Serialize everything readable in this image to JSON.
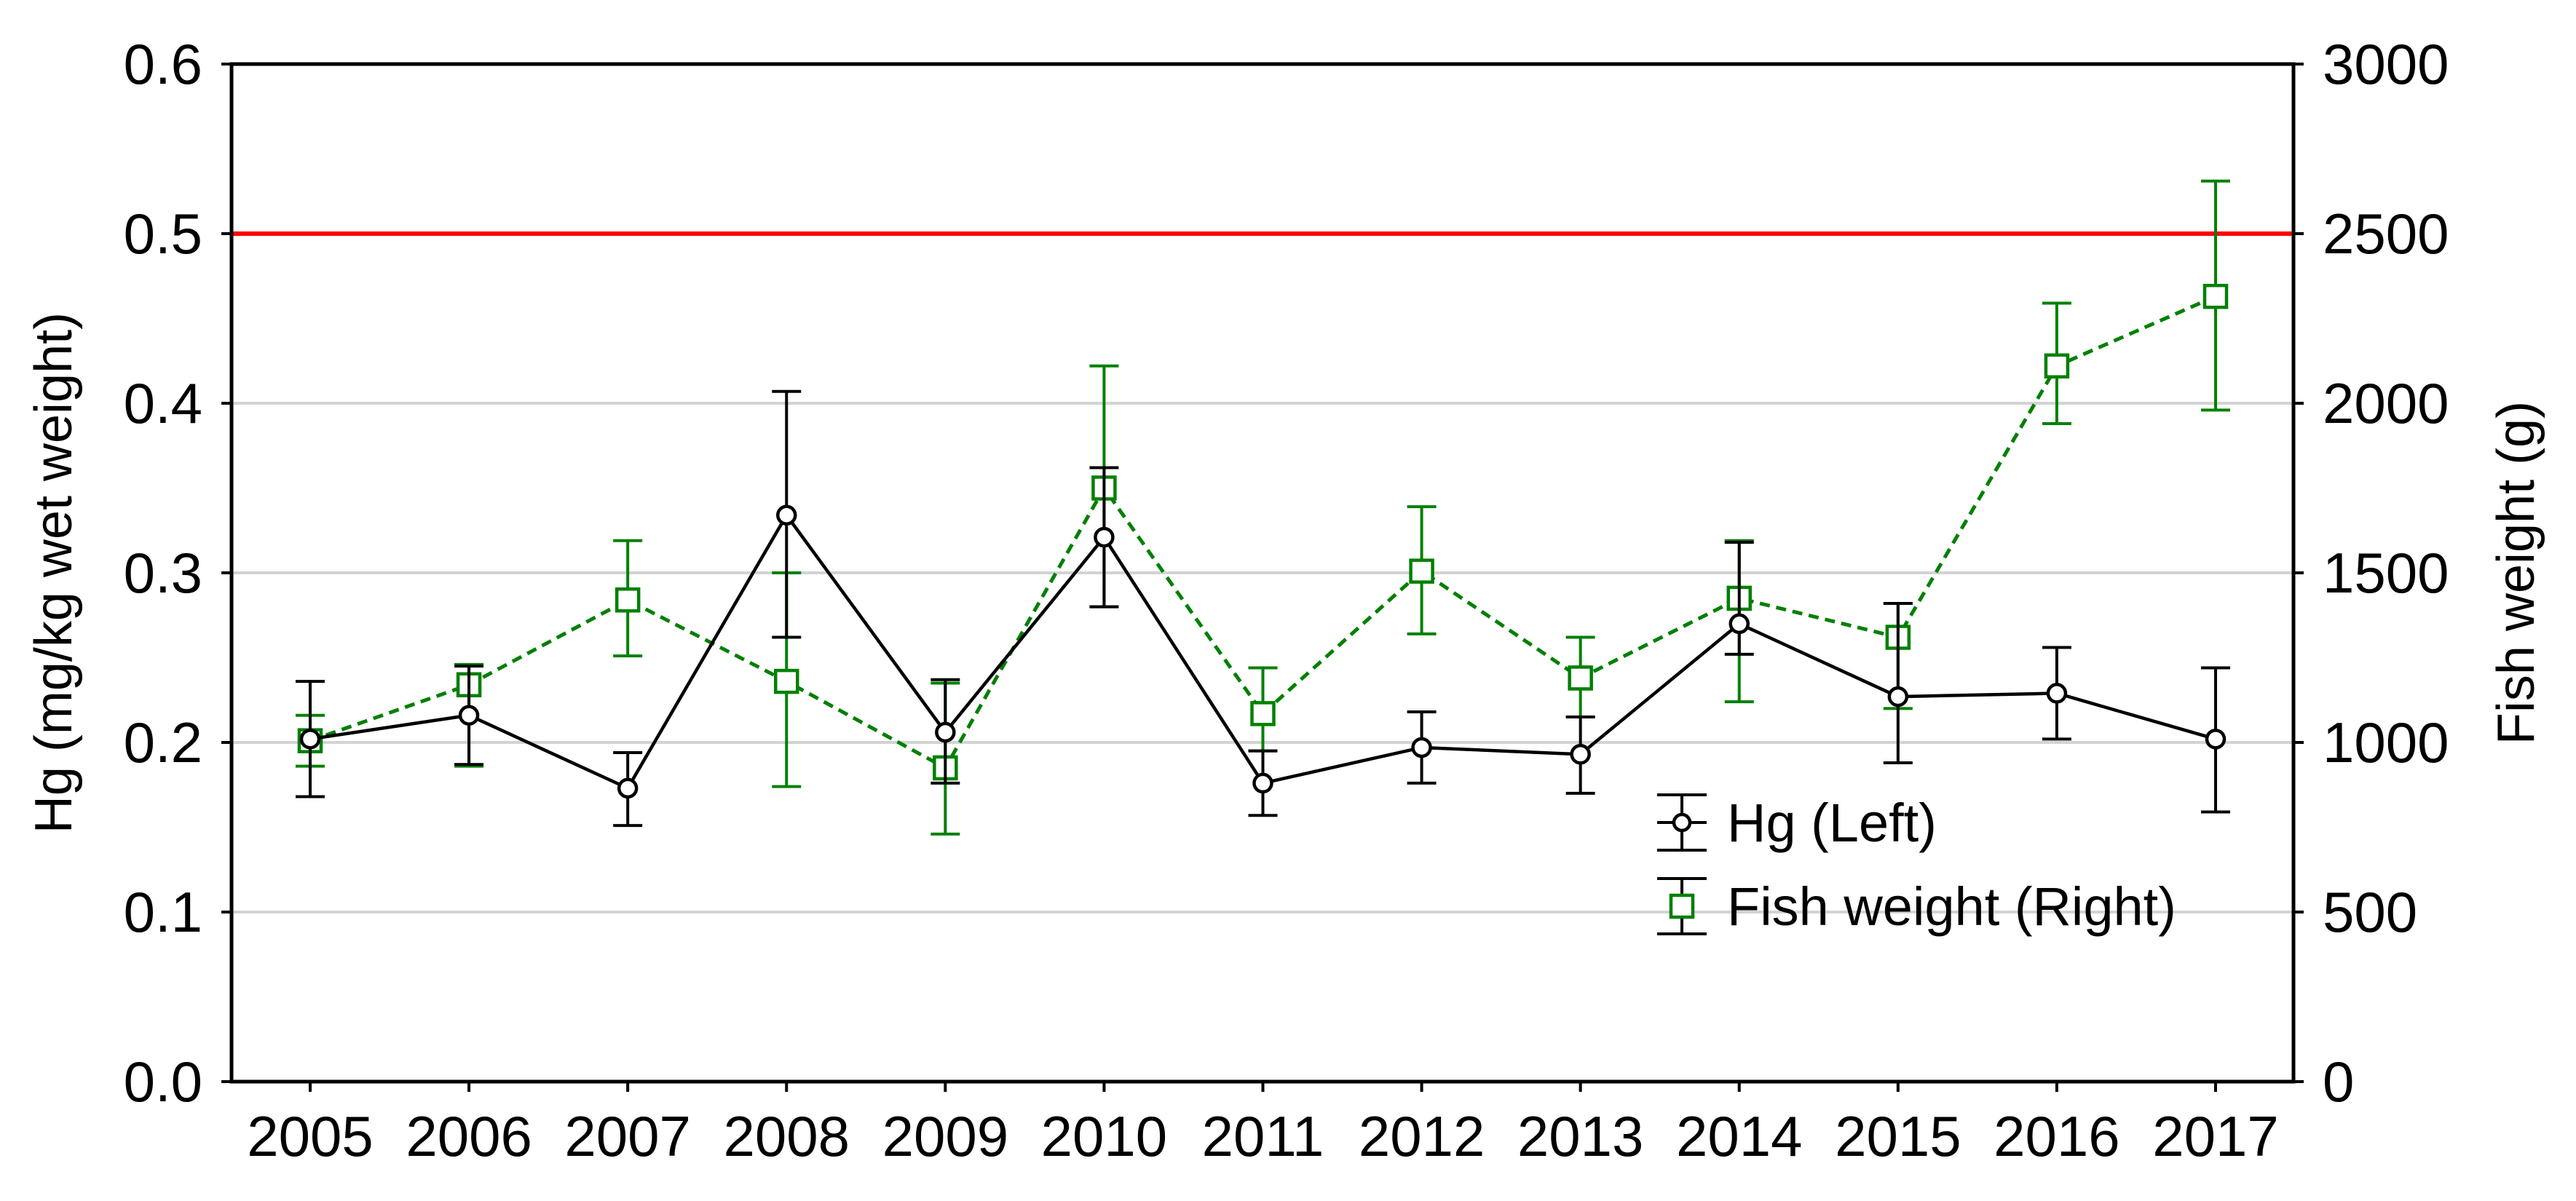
{
  "chart_data": {
    "type": "line",
    "title": "",
    "xlabel": "",
    "categories": [
      "2005",
      "2006",
      "2007",
      "2008",
      "2009",
      "2010",
      "2011",
      "2012",
      "2013",
      "2014",
      "2015",
      "2016",
      "2017"
    ],
    "left_axis": {
      "label": "Hg (mg/kg wet weight)",
      "range": [
        0,
        0.6
      ],
      "ticks": [
        "0.0",
        "0.1",
        "0.2",
        "0.3",
        "0.4",
        "0.5",
        "0.6"
      ]
    },
    "right_axis": {
      "label": "Fish weight (g)",
      "range": [
        0,
        3000
      ],
      "ticks": [
        "0",
        "500",
        "1000",
        "1500",
        "2000",
        "2500",
        "3000"
      ]
    },
    "reference_line": {
      "axis": "left",
      "value": 0.5,
      "color": "#ff0000"
    },
    "grid": "horizontal",
    "legend_position": "bottom-right",
    "series": [
      {
        "name": "Hg (Left)",
        "axis": "left",
        "color": "#000000",
        "marker": "circle",
        "line_style": "solid",
        "values": [
          0.202,
          0.216,
          0.173,
          0.334,
          0.206,
          0.321,
          0.176,
          0.197,
          0.193,
          0.27,
          0.227,
          0.229,
          0.202
        ],
        "err_low": [
          0.168,
          0.187,
          0.151,
          0.262,
          0.176,
          0.28,
          0.157,
          0.176,
          0.17,
          0.252,
          0.188,
          0.202,
          0.159
        ],
        "err_high": [
          0.236,
          0.245,
          0.194,
          0.407,
          0.237,
          0.362,
          0.195,
          0.218,
          0.215,
          0.318,
          0.282,
          0.256,
          0.244
        ]
      },
      {
        "name": "Fish weight (Right)",
        "axis": "right",
        "color": "#008000",
        "marker": "square",
        "line_style": "dashed",
        "values": [
          1005,
          1170,
          1420,
          1180,
          925,
          1750,
          1085,
          1505,
          1190,
          1425,
          1310,
          2110,
          2315
        ],
        "err_low": [
          930,
          930,
          1255,
          870,
          730,
          1400,
          975,
          1320,
          1075,
          1120,
          1100,
          1940,
          1980
        ],
        "err_high": [
          1080,
          1230,
          1595,
          1500,
          1175,
          2110,
          1220,
          1695,
          1310,
          1595,
          1410,
          2295,
          2655
        ]
      }
    ]
  }
}
